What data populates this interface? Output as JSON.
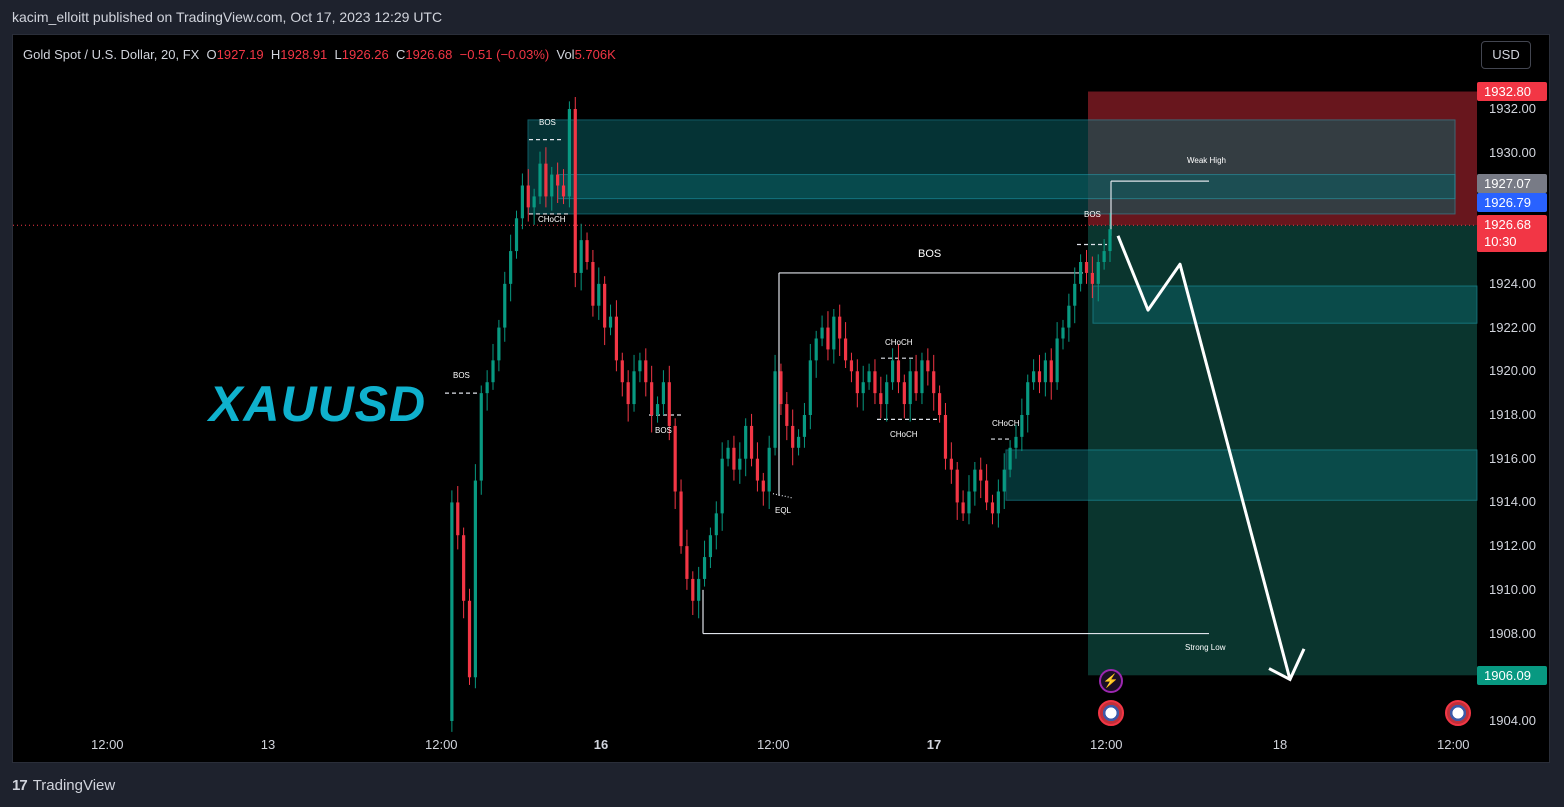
{
  "header": {
    "published_text": "kacim_elloitt published on TradingView.com, Oct 17, 2023 12:29 UTC"
  },
  "legend": {
    "symbol": "Gold Spot / U.S. Dollar, 20, FX",
    "open_label": "O",
    "open": "1927.19",
    "high_label": "H",
    "high": "1928.91",
    "low_label": "L",
    "low": "1926.26",
    "close_label": "C",
    "close": "1926.68",
    "change": "−0.51 (−0.03%)",
    "vol_label": "Vol",
    "vol": "5.706K"
  },
  "currency_button": "USD",
  "watermark_text": "XAUUSD",
  "footer": {
    "brand": "TradingView",
    "logo": "17"
  },
  "price_labels": {
    "target_top": "1932.80",
    "weak_high_level": "1927.07",
    "last_price": "1926.79",
    "close_price": "1926.68",
    "countdown": "10:30",
    "target_bottom": "1906.09"
  },
  "annotations": {
    "bos_1": "BOS",
    "choch_1": "CHoCH",
    "bos_2": "BOS",
    "bos_3": "BOS",
    "bos_4": "BOS",
    "eql": "EQL",
    "choch_2": "CHoCH",
    "choch_3": "CHoCH",
    "choch_4": "CHoCH",
    "bos_5": "BOS",
    "weak_high": "Weak High",
    "strong_low": "Strong Low"
  },
  "colors": {
    "up": "#089981",
    "down": "#f23645",
    "zone": "#0a5d61",
    "zone_border": "#1ea6b8",
    "stop_zone": "#7a1a22",
    "target_zone": "#0b3b33",
    "arrow": "#ffffff"
  },
  "chart_data": {
    "type": "candlestick",
    "symbol": "Gold Spot / U.S. Dollar",
    "timeframe": "20",
    "x_ticks": [
      "12:00",
      "13",
      "12:00",
      "16",
      "12:00",
      "17",
      "12:00",
      "18",
      "12:00"
    ],
    "y_ticks": [
      "1932.00",
      "1930.00",
      "1924.00",
      "1922.00",
      "1920.00",
      "1918.00",
      "1916.00",
      "1914.00",
      "1912.00",
      "1910.00",
      "1908.00",
      "1904.00"
    ],
    "ylim": [
      1903,
      1933.5
    ],
    "series": [
      {
        "name": "XAUUSD",
        "close_path": [
          1904.0,
          1914.0,
          1912.5,
          1909.5,
          1906.0,
          1915.0,
          1919.0,
          1919.5,
          1920.5,
          1922.0,
          1924.0,
          1925.5,
          1927.0,
          1928.5,
          1927.5,
          1928.0,
          1929.5,
          1928.0,
          1929.0,
          1928.5,
          1928.0,
          1932.0,
          1924.5,
          1926.0,
          1925.0,
          1923.0,
          1924.0,
          1922.0,
          1922.5,
          1920.5,
          1919.5,
          1918.5,
          1920.0,
          1920.5,
          1919.5,
          1918.0,
          1918.5,
          1919.5,
          1917.5,
          1914.5,
          1912.0,
          1910.5,
          1909.5,
          1910.5,
          1911.5,
          1912.5,
          1913.5,
          1916.0,
          1916.5,
          1915.5,
          1916.0,
          1917.5,
          1916.0,
          1915.0,
          1914.5,
          1916.5,
          1920.0,
          1918.5,
          1917.5,
          1916.5,
          1917.0,
          1918.0,
          1920.5,
          1921.5,
          1922.0,
          1921.0,
          1922.5,
          1921.5,
          1920.5,
          1920.0,
          1919.0,
          1919.5,
          1920.0,
          1919.0,
          1918.5,
          1919.5,
          1920.5,
          1919.5,
          1918.5,
          1920.0,
          1919.0,
          1920.5,
          1920.0,
          1919.0,
          1918.0,
          1916.0,
          1915.5,
          1914.0,
          1913.5,
          1914.5,
          1915.5,
          1915.0,
          1914.0,
          1913.5,
          1914.5,
          1915.5,
          1916.5,
          1917.0,
          1918.0,
          1919.5,
          1920.0,
          1919.5,
          1920.5,
          1919.5,
          1921.5,
          1922.0,
          1923.0,
          1924.0,
          1925.0,
          1924.5,
          1924.0,
          1925.0,
          1925.5,
          1926.5
        ]
      }
    ]
  }
}
